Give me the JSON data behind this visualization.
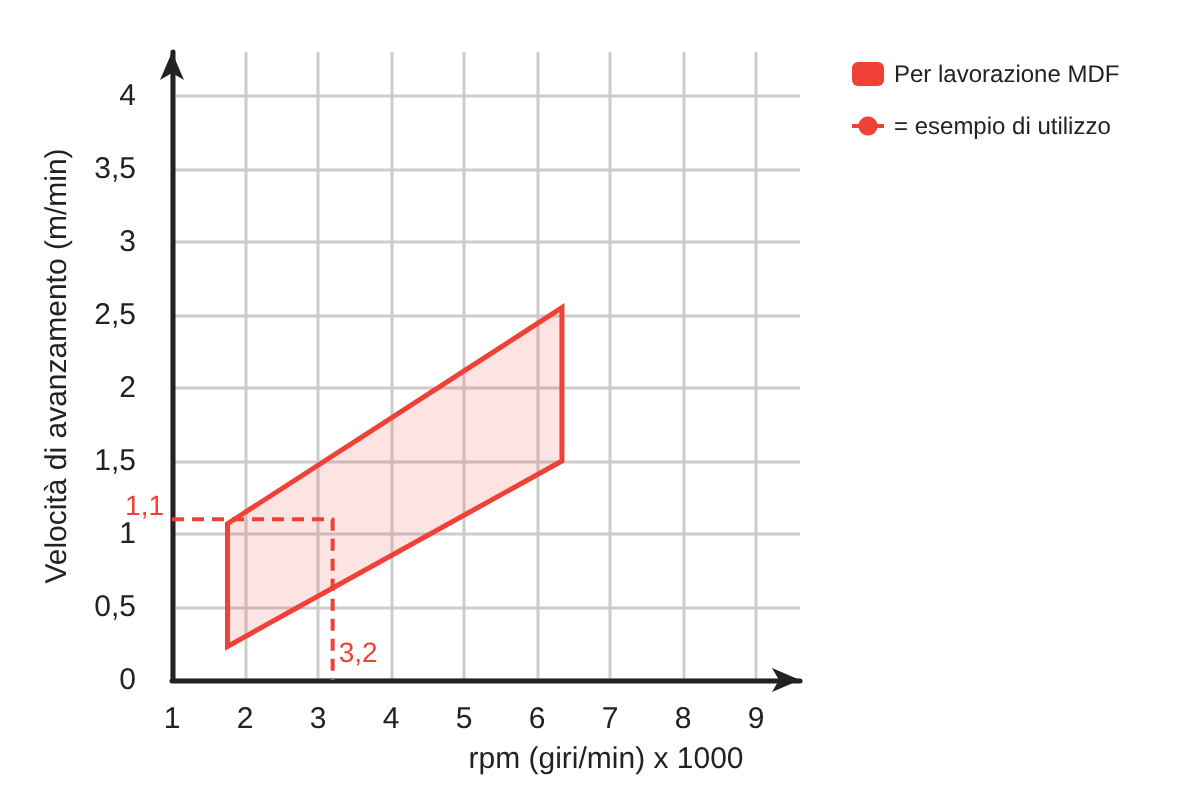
{
  "chart_data": {
    "type": "line",
    "xlabel": "rpm (giri/min) x 1000",
    "ylabel": "Velocità di avanzamento (m/min)",
    "xlim": [
      1,
      9.6
    ],
    "xticks": [
      1,
      2,
      3,
      4,
      5,
      6,
      7,
      8,
      9
    ],
    "ylim": [
      0,
      4.3
    ],
    "yticks": [
      0,
      {
        "value": 0.5,
        "label": "0,5"
      },
      1,
      {
        "value": 1.5,
        "label": "1,5"
      },
      2,
      {
        "value": 2.5,
        "label": "2,5"
      },
      3,
      {
        "value": 3.5,
        "label": "3,5"
      },
      4
    ],
    "grid": true,
    "legend": "top right",
    "marker": "none",
    "series": [
      {
        "type": "area",
        "name": "Per lavorazione MDF",
        "color": "#ef4136",
        "x": [
          1.76,
          6.34,
          6.34,
          1.76
        ],
        "values": [
          1.07,
          2.55,
          1.5,
          0.23
        ]
      },
      {
        "name": "= esempio di utilizzo",
        "color": "#ef4136",
        "line_style": "dashed",
        "x": [
          1,
          3.2,
          3.2
        ],
        "values": [
          1.1,
          1.1,
          0
        ]
      }
    ],
    "annotations": [
      {
        "text": "1,1",
        "x": 1,
        "y": 1.1
      },
      {
        "text": "3,2",
        "x": 3.2,
        "y": 0
      }
    ]
  }
}
